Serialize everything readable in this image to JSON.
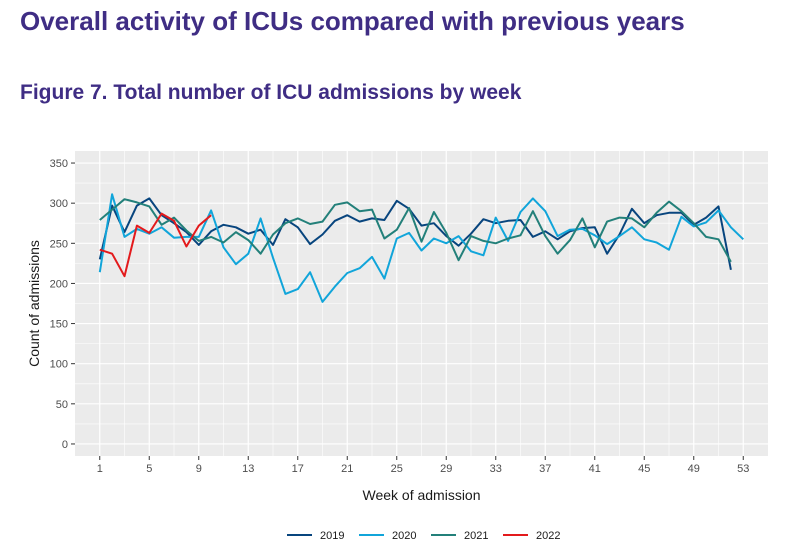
{
  "page": {
    "heading": "Overall activity of ICUs compared with previous years",
    "figure_title": "Figure 7. Total number of ICU admissions by week"
  },
  "colors": {
    "heading": "#3f2d84",
    "panel": "#ebebeb",
    "grid": "#ffffff"
  },
  "chart_data": {
    "type": "line",
    "title": "Figure 7. Total number of ICU admissions by week",
    "xlabel": "Week of admission",
    "ylabel": "Count of admissions",
    "xlim": [
      -1,
      55
    ],
    "ylim": [
      -15,
      365
    ],
    "xticks": [
      1,
      5,
      9,
      13,
      17,
      21,
      25,
      29,
      33,
      37,
      41,
      45,
      49,
      53
    ],
    "yticks": [
      0,
      50,
      100,
      150,
      200,
      250,
      300,
      350
    ],
    "grid": true,
    "legend_position": "bottom",
    "series": [
      {
        "name": "2019",
        "color": "#08457e",
        "x": [
          1,
          2,
          3,
          4,
          5,
          6,
          7,
          8,
          9,
          10,
          11,
          12,
          13,
          14,
          15,
          16,
          17,
          18,
          19,
          20,
          21,
          22,
          23,
          24,
          25,
          26,
          27,
          28,
          29,
          30,
          31,
          32,
          33,
          34,
          35,
          36,
          37,
          38,
          39,
          40,
          41,
          42,
          43,
          44,
          45,
          46,
          47,
          48,
          49,
          50,
          51,
          52
        ],
        "values": [
          230,
          297,
          264,
          297,
          306,
          285,
          275,
          264,
          248,
          265,
          273,
          270,
          262,
          267,
          248,
          280,
          270,
          249,
          261,
          278,
          285,
          277,
          281,
          279,
          303,
          293,
          272,
          275,
          259,
          247,
          262,
          280,
          275,
          278,
          279,
          258,
          265,
          255,
          265,
          269,
          270,
          237,
          261,
          293,
          275,
          285,
          288,
          288,
          273,
          282,
          296,
          217
        ]
      },
      {
        "name": "2020",
        "color": "#11a5da",
        "x": [
          1,
          2,
          3,
          4,
          5,
          6,
          7,
          8,
          9,
          10,
          11,
          12,
          13,
          14,
          15,
          16,
          17,
          18,
          19,
          20,
          21,
          22,
          23,
          24,
          25,
          26,
          27,
          28,
          29,
          30,
          31,
          32,
          33,
          34,
          35,
          36,
          37,
          38,
          39,
          40,
          41,
          42,
          43,
          44,
          45,
          46,
          47,
          48,
          49,
          50,
          51,
          52,
          53
        ],
        "values": [
          214,
          311,
          258,
          268,
          262,
          270,
          257,
          258,
          258,
          291,
          245,
          224,
          237,
          281,
          232,
          187,
          193,
          214,
          177,
          196,
          213,
          219,
          233,
          206,
          256,
          263,
          241,
          256,
          250,
          259,
          240,
          235,
          282,
          253,
          289,
          306,
          290,
          259,
          267,
          268,
          260,
          249,
          259,
          270,
          255,
          251,
          242,
          283,
          271,
          276,
          291,
          270,
          255
        ]
      },
      {
        "name": "2021",
        "color": "#23807a",
        "x": [
          1,
          2,
          3,
          4,
          5,
          6,
          7,
          8,
          9,
          10,
          11,
          12,
          13,
          14,
          15,
          16,
          17,
          18,
          19,
          20,
          21,
          22,
          23,
          24,
          25,
          26,
          27,
          28,
          29,
          30,
          31,
          32,
          33,
          34,
          35,
          36,
          37,
          38,
          39,
          40,
          41,
          42,
          43,
          44,
          45,
          46,
          47,
          48,
          49,
          50,
          51,
          52
        ],
        "values": [
          279,
          292,
          305,
          301,
          296,
          273,
          282,
          266,
          253,
          258,
          251,
          264,
          254,
          237,
          261,
          275,
          281,
          274,
          277,
          298,
          301,
          290,
          292,
          256,
          267,
          294,
          252,
          289,
          263,
          229,
          259,
          253,
          250,
          256,
          260,
          290,
          259,
          237,
          254,
          281,
          245,
          277,
          282,
          281,
          270,
          288,
          302,
          290,
          275,
          258,
          255,
          227
        ]
      },
      {
        "name": "2022",
        "color": "#e31a1c",
        "x": [
          1,
          2,
          3,
          4,
          5,
          6,
          7,
          8,
          9,
          10
        ],
        "values": [
          242,
          237,
          209,
          272,
          263,
          287,
          278,
          246,
          272,
          285
        ]
      }
    ]
  }
}
